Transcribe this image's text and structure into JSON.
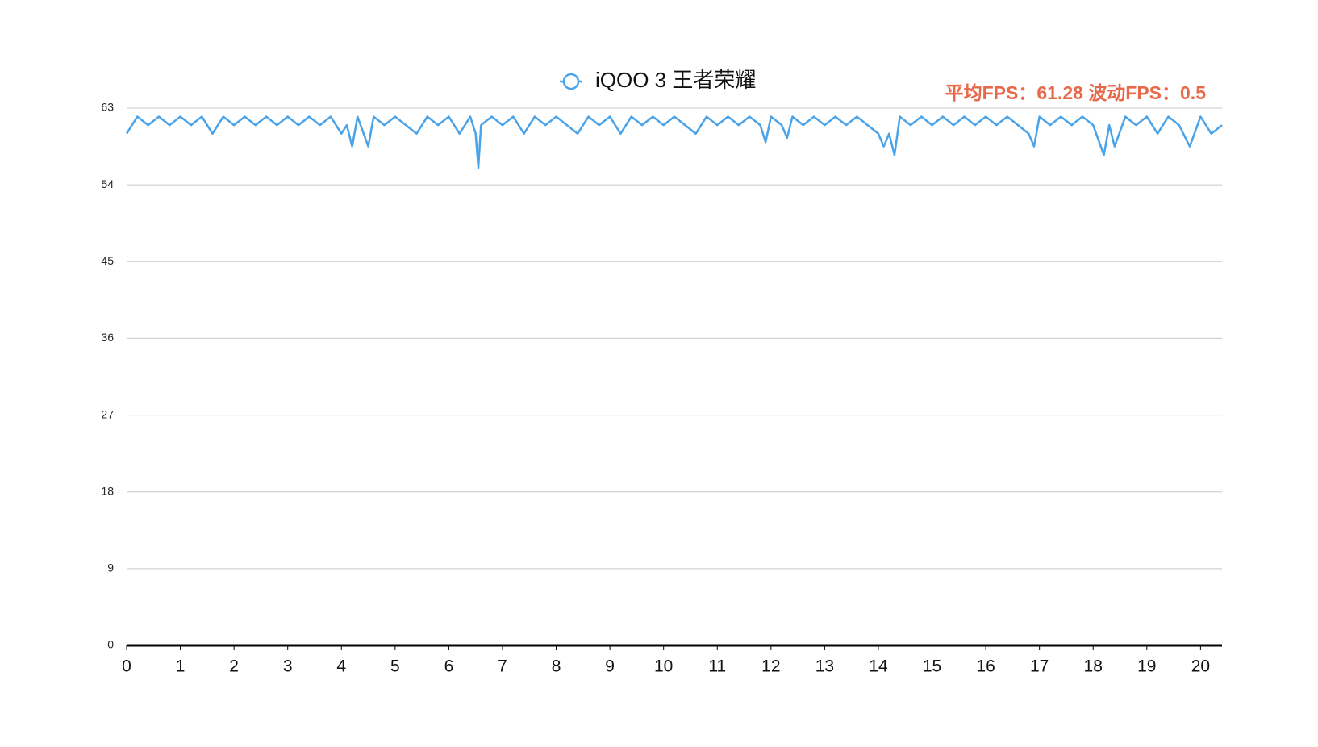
{
  "chart_data": {
    "type": "line",
    "annotation": "平均FPS：61.28  波动FPS：0.5",
    "xlim": [
      0,
      20.4
    ],
    "xticks": [
      0,
      1,
      2,
      3,
      4,
      5,
      6,
      7,
      8,
      9,
      10,
      11,
      12,
      13,
      14,
      15,
      16,
      17,
      18,
      19,
      20
    ],
    "ylim": [
      0,
      63
    ],
    "yticks": [
      0,
      9,
      18,
      27,
      36,
      45,
      54,
      63
    ],
    "grid": true,
    "x": [
      0,
      0.2,
      0.4,
      0.6,
      0.8,
      1,
      1.2,
      1.4,
      1.6,
      1.8,
      2,
      2.2,
      2.4,
      2.6,
      2.8,
      3,
      3.2,
      3.4,
      3.6,
      3.8,
      4,
      4.1,
      4.2,
      4.3,
      4.5,
      4.6,
      4.8,
      5,
      5.2,
      5.4,
      5.6,
      5.8,
      6,
      6.2,
      6.4,
      6.5,
      6.55,
      6.6,
      6.8,
      7,
      7.2,
      7.4,
      7.6,
      7.8,
      8,
      8.2,
      8.4,
      8.6,
      8.8,
      9,
      9.2,
      9.4,
      9.6,
      9.8,
      10,
      10.2,
      10.4,
      10.6,
      10.8,
      11,
      11.2,
      11.4,
      11.6,
      11.8,
      11.9,
      12,
      12.2,
      12.3,
      12.4,
      12.6,
      12.8,
      13,
      13.2,
      13.4,
      13.6,
      13.8,
      14,
      14.1,
      14.2,
      14.3,
      14.4,
      14.6,
      14.8,
      15,
      15.2,
      15.4,
      15.6,
      15.8,
      16,
      16.2,
      16.4,
      16.6,
      16.8,
      16.9,
      17,
      17.2,
      17.4,
      17.6,
      17.8,
      18,
      18.2,
      18.3,
      18.4,
      18.6,
      18.8,
      19,
      19.2,
      19.4,
      19.6,
      19.8,
      20,
      20.2,
      20.4
    ],
    "series": [
      {
        "name": "iQOO 3  王者荣耀",
        "color": "#4aa3e8",
        "values": [
          60,
          62,
          61,
          62,
          61,
          62,
          61,
          62,
          60,
          62,
          61,
          62,
          61,
          62,
          61,
          62,
          61,
          62,
          61,
          62,
          60,
          61,
          58.5,
          62,
          58.5,
          62,
          61,
          62,
          61,
          60,
          62,
          61,
          62,
          60,
          62,
          60,
          56,
          61,
          62,
          61,
          62,
          60,
          62,
          61,
          62,
          61,
          60,
          62,
          61,
          62,
          60,
          62,
          61,
          62,
          61,
          62,
          61,
          60,
          62,
          61,
          62,
          61,
          62,
          61,
          59,
          62,
          61,
          59.5,
          62,
          61,
          62,
          61,
          62,
          61,
          62,
          61,
          60,
          58.5,
          60,
          57.5,
          62,
          61,
          62,
          61,
          62,
          61,
          62,
          61,
          62,
          61,
          62,
          61,
          60,
          58.5,
          62,
          61,
          62,
          61,
          62,
          61,
          57.5,
          61,
          58.5,
          62,
          61,
          62,
          60,
          62,
          61,
          58.5,
          62,
          60,
          61
        ]
      }
    ]
  }
}
